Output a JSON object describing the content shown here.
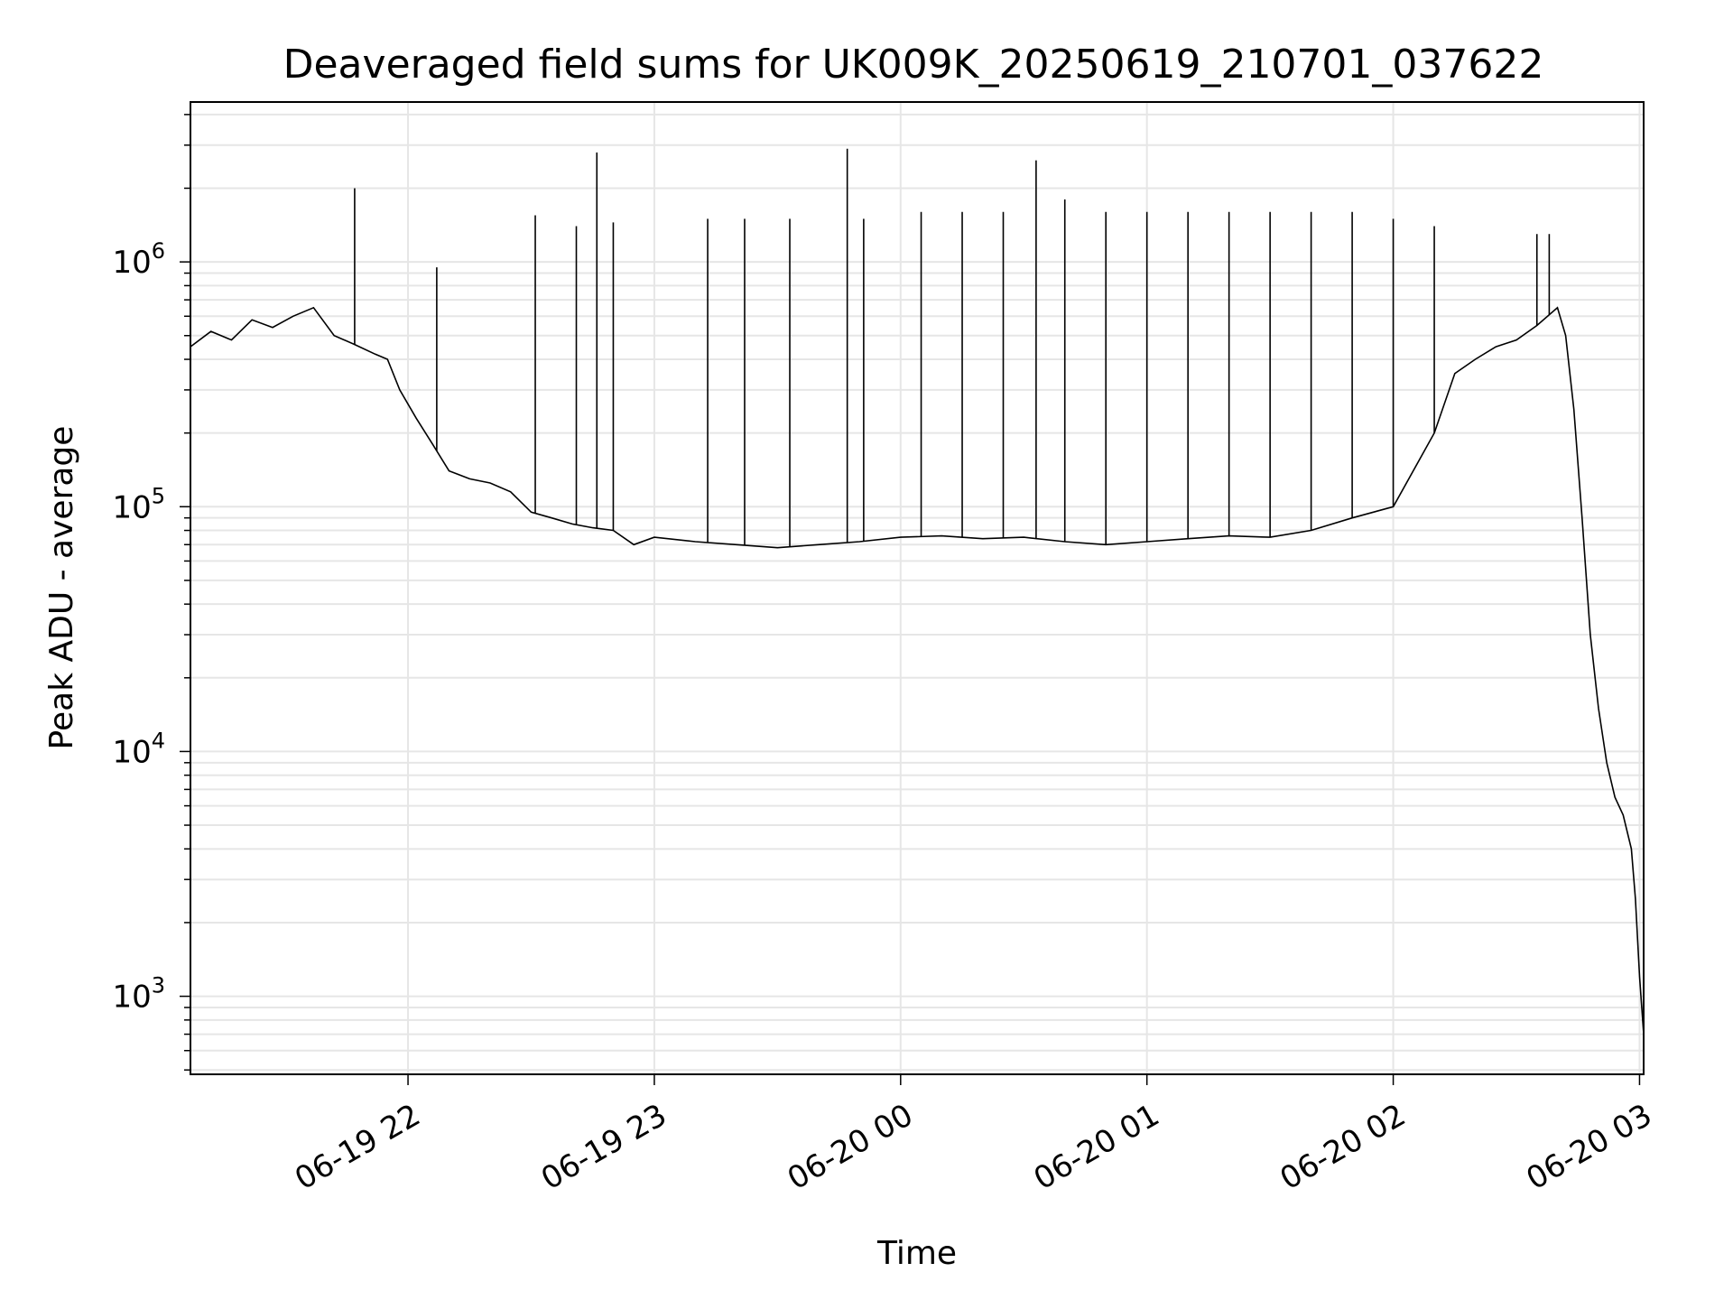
{
  "chart_data": {
    "type": "line",
    "title": "Deaveraged field sums for UK009K_20250619_210701_037622",
    "xlabel": "Time",
    "ylabel": "Peak ADU - average",
    "yscale": "log",
    "ylim": [
      480,
      4500000
    ],
    "xlim": [
      "2025-06-19 21:07",
      "2025-06-20 03:01"
    ],
    "grid": true,
    "line_color": "#000000",
    "x_ticks": [
      {
        "label": "06-19 22",
        "time": "2025-06-19 22:00"
      },
      {
        "label": "06-19 23",
        "time": "2025-06-19 23:00"
      },
      {
        "label": "06-20 00",
        "time": "2025-06-20 00:00"
      },
      {
        "label": "06-20 01",
        "time": "2025-06-20 01:00"
      },
      {
        "label": "06-20 02",
        "time": "2025-06-20 02:00"
      },
      {
        "label": "06-20 03",
        "time": "2025-06-20 03:00"
      }
    ],
    "y_ticks": [
      {
        "base": "10",
        "exp": "3",
        "value": 1000
      },
      {
        "base": "10",
        "exp": "4",
        "value": 10000
      },
      {
        "base": "10",
        "exp": "5",
        "value": 100000
      },
      {
        "base": "10",
        "exp": "6",
        "value": 1000000
      }
    ],
    "series": [
      {
        "name": "",
        "points": [
          [
            "2025-06-19 21:07",
            450000
          ],
          [
            "2025-06-19 21:12",
            520000
          ],
          [
            "2025-06-19 21:17",
            480000
          ],
          [
            "2025-06-19 21:22",
            580000
          ],
          [
            "2025-06-19 21:27",
            540000
          ],
          [
            "2025-06-19 21:32",
            600000
          ],
          [
            "2025-06-19 21:37",
            650000
          ],
          [
            "2025-06-19 21:42",
            500000
          ],
          [
            "2025-06-19 21:47",
            460000
          ],
          [
            "2025-06-19 21:52",
            420000
          ],
          [
            "2025-06-19 21:55",
            400000
          ],
          [
            "2025-06-19 21:58",
            300000
          ],
          [
            "2025-06-19 22:02",
            230000
          ],
          [
            "2025-06-19 22:06",
            180000
          ],
          [
            "2025-06-19 22:10",
            140000
          ],
          [
            "2025-06-19 22:15",
            130000
          ],
          [
            "2025-06-19 22:20",
            125000
          ],
          [
            "2025-06-19 22:25",
            115000
          ],
          [
            "2025-06-19 22:30",
            95000
          ],
          [
            "2025-06-19 22:35",
            90000
          ],
          [
            "2025-06-19 22:40",
            85000
          ],
          [
            "2025-06-19 22:45",
            82000
          ],
          [
            "2025-06-19 22:50",
            80000
          ],
          [
            "2025-06-19 22:55",
            70000
          ],
          [
            "2025-06-19 23:00",
            75000
          ],
          [
            "2025-06-19 23:10",
            72000
          ],
          [
            "2025-06-19 23:20",
            70000
          ],
          [
            "2025-06-19 23:30",
            68000
          ],
          [
            "2025-06-19 23:40",
            70000
          ],
          [
            "2025-06-19 23:50",
            72000
          ],
          [
            "2025-06-20 00:00",
            75000
          ],
          [
            "2025-06-20 00:10",
            76000
          ],
          [
            "2025-06-20 00:20",
            74000
          ],
          [
            "2025-06-20 00:30",
            75000
          ],
          [
            "2025-06-20 00:40",
            72000
          ],
          [
            "2025-06-20 00:50",
            70000
          ],
          [
            "2025-06-20 01:00",
            72000
          ],
          [
            "2025-06-20 01:10",
            74000
          ],
          [
            "2025-06-20 01:20",
            76000
          ],
          [
            "2025-06-20 01:30",
            75000
          ],
          [
            "2025-06-20 01:40",
            80000
          ],
          [
            "2025-06-20 01:50",
            90000
          ],
          [
            "2025-06-20 02:00",
            100000
          ],
          [
            "2025-06-20 02:10",
            200000
          ],
          [
            "2025-06-20 02:15",
            350000
          ],
          [
            "2025-06-20 02:20",
            400000
          ],
          [
            "2025-06-20 02:25",
            450000
          ],
          [
            "2025-06-20 02:30",
            480000
          ],
          [
            "2025-06-20 02:35",
            550000
          ],
          [
            "2025-06-20 02:40",
            650000
          ],
          [
            "2025-06-20 02:42",
            500000
          ],
          [
            "2025-06-20 02:44",
            250000
          ],
          [
            "2025-06-20 02:46",
            90000
          ],
          [
            "2025-06-20 02:48",
            30000
          ],
          [
            "2025-06-20 02:50",
            15000
          ],
          [
            "2025-06-20 02:52",
            9000
          ],
          [
            "2025-06-20 02:54",
            6500
          ],
          [
            "2025-06-20 02:56",
            5500
          ],
          [
            "2025-06-20 02:58",
            4000
          ],
          [
            "2025-06-20 02:59",
            2500
          ],
          [
            "2025-06-20 03:00",
            1200
          ],
          [
            "2025-06-20 03:01",
            700
          ]
        ],
        "spikes": [
          [
            "2025-06-19 21:47",
            2000000
          ],
          [
            "2025-06-19 22:07",
            950000
          ],
          [
            "2025-06-19 22:31",
            1550000
          ],
          [
            "2025-06-19 22:41",
            1400000
          ],
          [
            "2025-06-19 22:46",
            2800000
          ],
          [
            "2025-06-19 22:50",
            1450000
          ],
          [
            "2025-06-19 23:13",
            1500000
          ],
          [
            "2025-06-19 23:22",
            1500000
          ],
          [
            "2025-06-19 23:33",
            1500000
          ],
          [
            "2025-06-19 23:47",
            2900000
          ],
          [
            "2025-06-19 23:51",
            1500000
          ],
          [
            "2025-06-20 00:05",
            1600000
          ],
          [
            "2025-06-20 00:15",
            1600000
          ],
          [
            "2025-06-20 00:25",
            1600000
          ],
          [
            "2025-06-20 00:33",
            2600000
          ],
          [
            "2025-06-20 00:40",
            1800000
          ],
          [
            "2025-06-20 00:50",
            1600000
          ],
          [
            "2025-06-20 01:00",
            1600000
          ],
          [
            "2025-06-20 01:10",
            1600000
          ],
          [
            "2025-06-20 01:20",
            1600000
          ],
          [
            "2025-06-20 01:30",
            1600000
          ],
          [
            "2025-06-20 01:40",
            1600000
          ],
          [
            "2025-06-20 01:50",
            1600000
          ],
          [
            "2025-06-20 02:00",
            1500000
          ],
          [
            "2025-06-20 02:10",
            1400000
          ],
          [
            "2025-06-20 02:35",
            1300000
          ],
          [
            "2025-06-20 02:38",
            1300000
          ]
        ]
      }
    ]
  }
}
